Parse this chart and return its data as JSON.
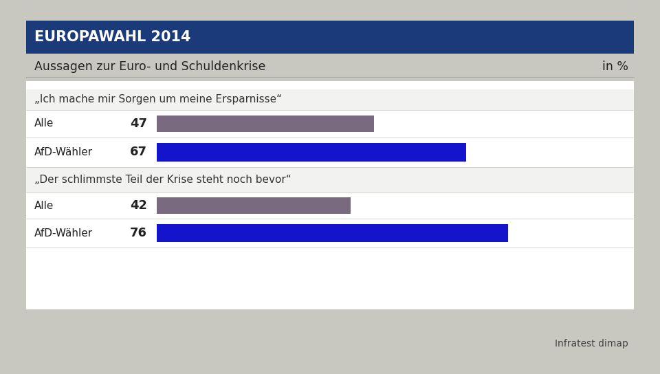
{
  "title_banner": "EUROPAWAHL 2014",
  "subtitle": "Aussagen zur Euro- und Schuldenkrise",
  "in_percent_label": "in %",
  "banner_color": "#1a3a7a",
  "background_color": "#c8c8c0",
  "white_panel_color": "#ffffff",
  "header_bg_color": "#f2f2f0",
  "bar_section1_label": "„Ich mache mir Sorgen um meine Ersparnisse“",
  "bar_section2_label": "„Der schlimmste Teil der Krise steht noch bevor“",
  "rows": [
    {
      "label": "Alle",
      "value": 47,
      "color": "#7a6a80",
      "afd": false
    },
    {
      "label": "AfD-Wähler",
      "value": 67,
      "color": "#1414cc",
      "afd": true
    },
    {
      "label": "Alle",
      "value": 42,
      "color": "#7a6a80",
      "afd": false
    },
    {
      "label": "AfD-Wähler",
      "value": 76,
      "color": "#1414cc",
      "afd": true
    }
  ],
  "source_label": "Infratest dimap",
  "figwidth": 9.6,
  "figheight": 5.44,
  "dpi": 100
}
